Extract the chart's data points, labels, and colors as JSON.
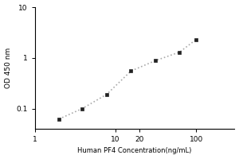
{
  "title": "",
  "xlabel": "Human PF4 Concentration(ng/mL)",
  "ylabel": "OD 450 nm",
  "x_data": [
    2.0,
    3.9,
    7.8,
    15.6,
    31.25,
    62.5,
    100.0
  ],
  "y_data": [
    0.062,
    0.1,
    0.19,
    0.55,
    0.88,
    1.3,
    2.3
  ],
  "xlim": [
    1,
    300
  ],
  "ylim": [
    0.04,
    10
  ],
  "xtick_vals": [
    1,
    10,
    20,
    100
  ],
  "xtick_labels": [
    "1",
    "10",
    "20",
    "100"
  ],
  "ytick_vals": [
    0.1,
    1,
    10
  ],
  "ytick_labels": [
    "0.1",
    "1",
    "10"
  ],
  "marker": "s",
  "marker_color": "#222222",
  "marker_size": 3.5,
  "line_style": ":",
  "line_color": "#aaaaaa",
  "line_width": 1.2,
  "background_color": "#ffffff",
  "xlabel_fontsize": 6.0,
  "ylabel_fontsize": 6.5,
  "tick_fontsize": 6.5,
  "fig_width": 3.0,
  "fig_height": 2.0,
  "dpi": 100
}
